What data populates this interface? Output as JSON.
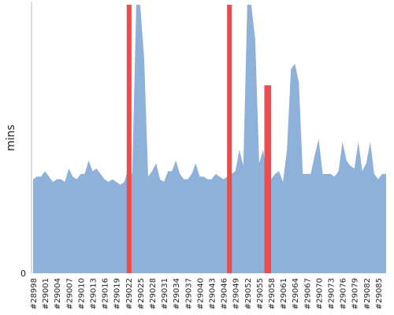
{
  "chart_data": {
    "type": "area",
    "title": "",
    "xlabel": "",
    "ylabel": "mins",
    "y_tick_labels": [
      "0"
    ],
    "ylim": [
      0,
      100
    ],
    "grid": false,
    "x_tick_labels": [
      "#28998",
      "#29001",
      "#29004",
      "#29007",
      "#29010",
      "#29013",
      "#29016",
      "#29019",
      "#29022",
      "#29025",
      "#29028",
      "#29031",
      "#29034",
      "#29037",
      "#29040",
      "#29043",
      "#29046",
      "#29049",
      "#29052",
      "#29055",
      "#29058",
      "#29061",
      "#29064",
      "#29067",
      "#29070",
      "#29073",
      "#29076",
      "#29079",
      "#29082",
      "#29085"
    ],
    "x_start": 28998,
    "x_end": 29087,
    "series": [
      {
        "type": "area",
        "color": "#8eb1da",
        "values": [
          35,
          36,
          36,
          38,
          36,
          34,
          35,
          35,
          34,
          39,
          36,
          35,
          37,
          37,
          42,
          38,
          39,
          37,
          35,
          34,
          35,
          34,
          33,
          34,
          39,
          37,
          100,
          100,
          80,
          36,
          38,
          41,
          35,
          34,
          38,
          38,
          42,
          37,
          35,
          35,
          37,
          41,
          36,
          36,
          35,
          35,
          37,
          36,
          35,
          36,
          37,
          38,
          46,
          40,
          100,
          100,
          87,
          41,
          46,
          35,
          35,
          37,
          38,
          34,
          46,
          76,
          78,
          71,
          37,
          37,
          37,
          44,
          50,
          37,
          37,
          37,
          36,
          38,
          49,
          42,
          40,
          39,
          49,
          38,
          41,
          49,
          37,
          35,
          37,
          37
        ]
      },
      {
        "type": "bar",
        "color": "#ee4c4c",
        "bars": [
          {
            "x_start": 29021.6,
            "x_end": 29022.8,
            "value": 100
          },
          {
            "x_start": 29046.9,
            "x_end": 29048.1,
            "value": 100
          },
          {
            "x_start": 29056.3,
            "x_end": 29058.0,
            "value": 70
          }
        ]
      }
    ]
  }
}
